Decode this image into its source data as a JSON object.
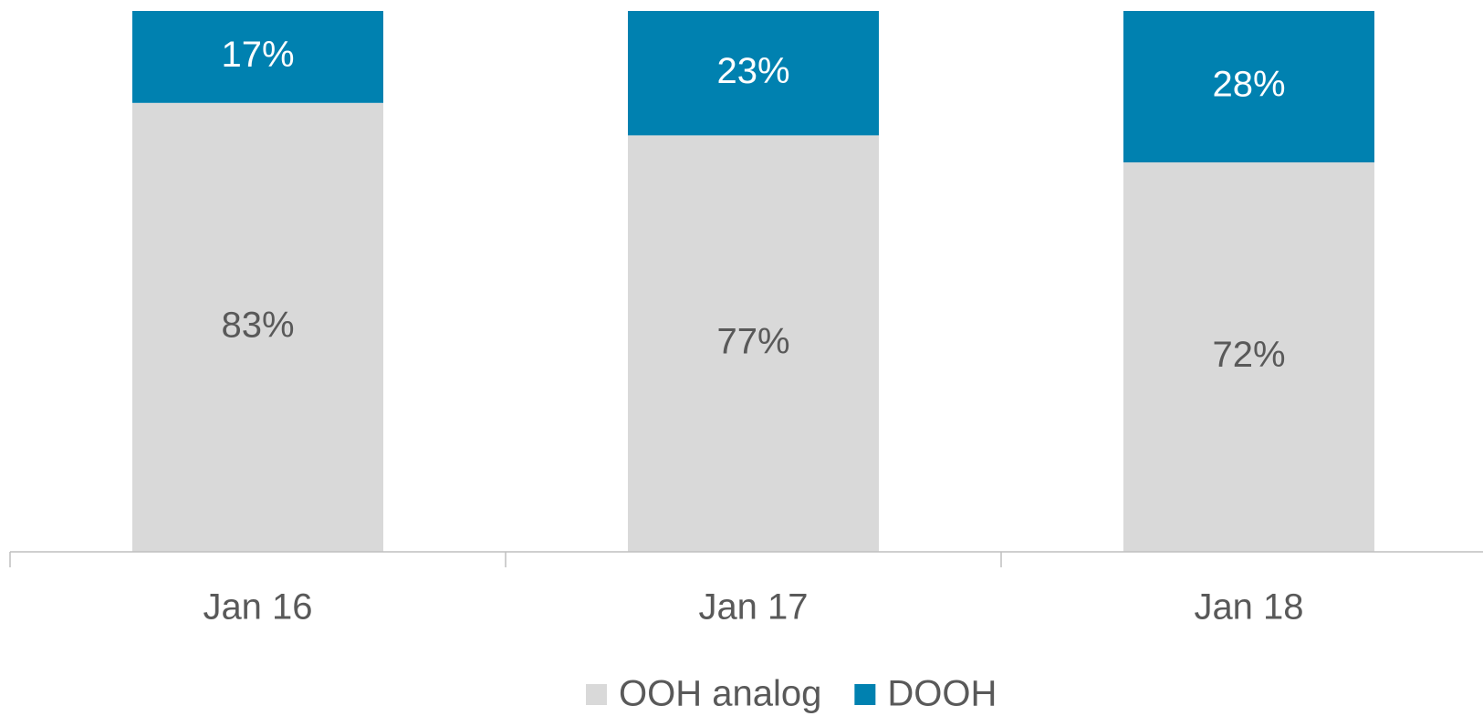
{
  "chart_data": {
    "type": "stacked_bar",
    "categories": [
      "Jan 16",
      "Jan 17",
      "Jan 18"
    ],
    "series": [
      {
        "name": "OOH analog",
        "color": "#d9d9d9",
        "values": [
          83,
          77,
          72
        ],
        "value_labels": [
          "83%",
          "77%",
          "72%"
        ],
        "label_color": "#595959"
      },
      {
        "name": "DOOH",
        "color": "#0081b0",
        "values": [
          17,
          23,
          28
        ],
        "value_labels": [
          "17%",
          "23%",
          "28%"
        ],
        "label_color": "#ffffff"
      }
    ],
    "ylim": [
      0,
      100
    ]
  }
}
